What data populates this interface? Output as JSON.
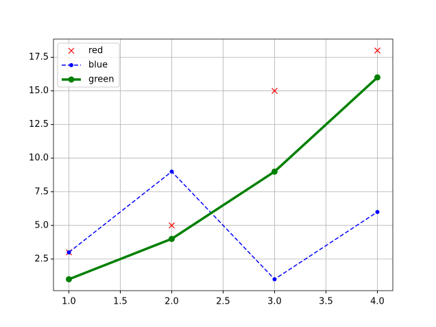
{
  "chart_data": {
    "type": "line",
    "x": [
      1,
      2,
      3,
      4
    ],
    "series": [
      {
        "name": "red",
        "color": "#ff0000",
        "values": [
          3,
          5,
          15,
          18
        ],
        "linestyle": "none",
        "marker": "x",
        "linewidth": 0
      },
      {
        "name": "blue",
        "color": "#0000ff",
        "values": [
          3,
          9,
          1,
          6
        ],
        "linestyle": "dashed",
        "marker": "o",
        "linewidth": 1.5
      },
      {
        "name": "green",
        "color": "#008000",
        "values": [
          1,
          4,
          9,
          16
        ],
        "linestyle": "solid",
        "marker": "o",
        "linewidth": 3.5
      }
    ],
    "xlim": [
      0.85,
      4.15
    ],
    "ylim": [
      0.15,
      18.85
    ],
    "xticks": [
      {
        "value": 1,
        "label": "1.0"
      },
      1.5,
      {
        "value": 2,
        "label": "2.0"
      },
      2.5,
      {
        "value": 3,
        "label": "3.0"
      },
      3.5,
      {
        "value": 4,
        "label": "4.0"
      }
    ],
    "yticks": [
      2.5,
      {
        "value": 5,
        "label": "5.0"
      },
      7.5,
      {
        "value": 10,
        "label": "10.0"
      },
      12.5,
      {
        "value": 15,
        "label": "15.0"
      },
      17.5
    ],
    "grid": true,
    "legend": "upper left"
  }
}
